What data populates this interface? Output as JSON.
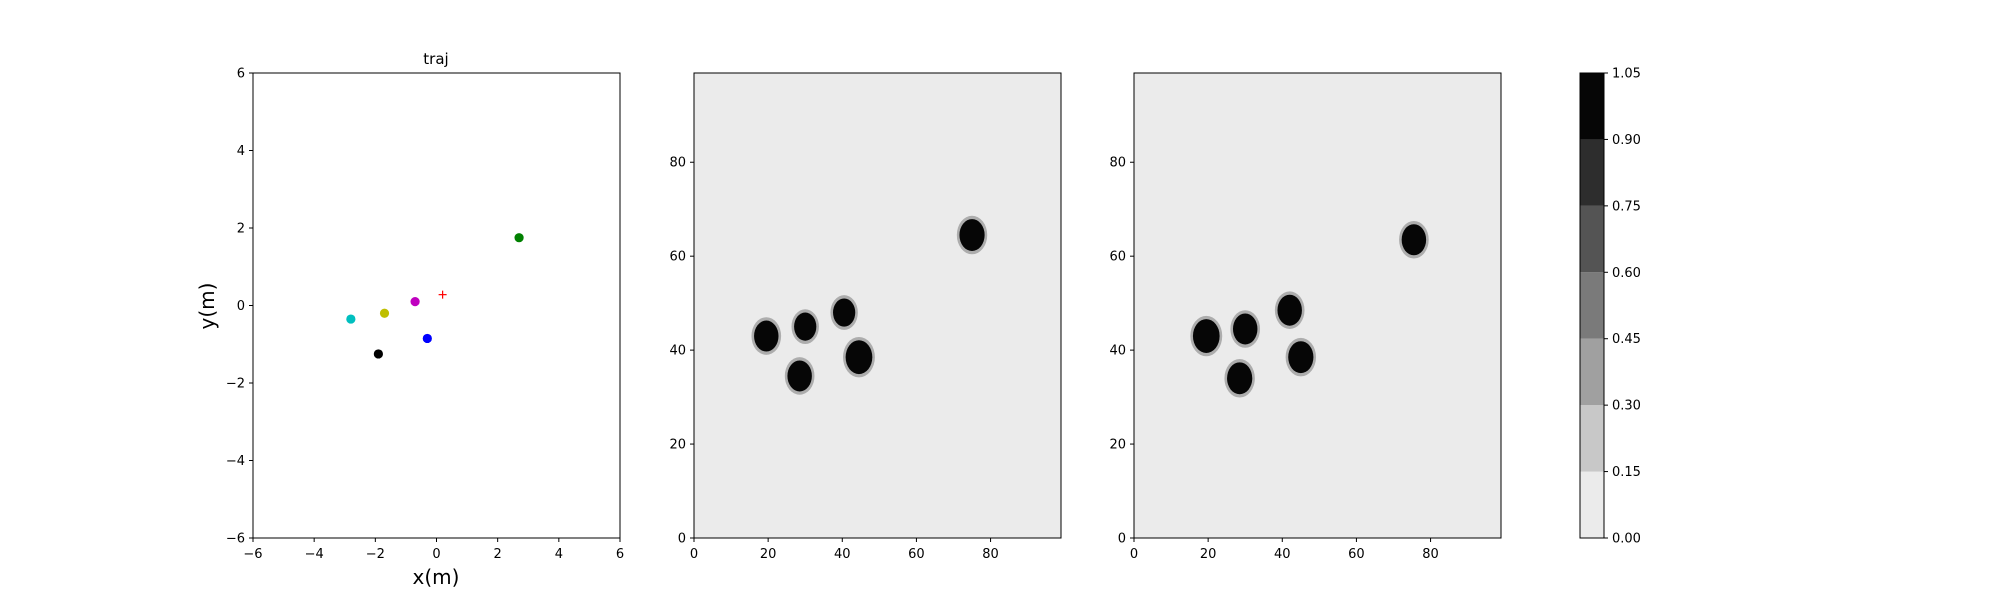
{
  "chart_data": [
    {
      "type": "scatter",
      "title": "traj",
      "xlabel": "x(m)",
      "ylabel": "y(m)",
      "xlim": [
        -6,
        6
      ],
      "ylim": [
        -6,
        6
      ],
      "xticks": [
        "−6",
        "−4",
        "−2",
        "0",
        "2",
        "4",
        "6"
      ],
      "yticks": [
        "−6",
        "−4",
        "−2",
        "0",
        "2",
        "4",
        "6"
      ],
      "grid": false,
      "points": [
        {
          "x": 2.7,
          "y": 1.75,
          "color": "#008000"
        },
        {
          "x": -2.8,
          "y": -0.35,
          "color": "#00bfbf"
        },
        {
          "x": -1.7,
          "y": -0.2,
          "color": "#bfbf00"
        },
        {
          "x": -0.7,
          "y": 0.1,
          "color": "#bf00bf"
        },
        {
          "x": -0.3,
          "y": -0.85,
          "color": "#0000ff"
        },
        {
          "x": -1.9,
          "y": -1.25,
          "color": "#000000"
        }
      ],
      "marker": {
        "x": 0.2,
        "y": 0.28,
        "symbol": "+",
        "color": "#ff0000"
      }
    },
    {
      "type": "heatmap",
      "xlim": [
        0,
        99
      ],
      "ylim": [
        0,
        99
      ],
      "xticks": [
        "0",
        "20",
        "40",
        "60",
        "80"
      ],
      "yticks": [
        "0",
        "20",
        "40",
        "60",
        "80"
      ],
      "background_value": 0.07,
      "blobs": [
        {
          "x": 19.5,
          "y": 43,
          "r": 3.3
        },
        {
          "x": 30,
          "y": 45,
          "r": 3.0
        },
        {
          "x": 40.5,
          "y": 48,
          "r": 3.0
        },
        {
          "x": 28.5,
          "y": 34.5,
          "r": 3.3
        },
        {
          "x": 44.5,
          "y": 38.5,
          "r": 3.6
        },
        {
          "x": 75,
          "y": 64.5,
          "r": 3.4
        }
      ]
    },
    {
      "type": "heatmap",
      "xlim": [
        0,
        99
      ],
      "ylim": [
        0,
        99
      ],
      "xticks": [
        "0",
        "20",
        "40",
        "60",
        "80"
      ],
      "yticks": [
        "0",
        "20",
        "40",
        "60",
        "80"
      ],
      "background_value": 0.07,
      "blobs": [
        {
          "x": 19.5,
          "y": 43,
          "r": 3.6
        },
        {
          "x": 30,
          "y": 44.5,
          "r": 3.3
        },
        {
          "x": 42,
          "y": 48.5,
          "r": 3.3
        },
        {
          "x": 28.5,
          "y": 34,
          "r": 3.4
        },
        {
          "x": 45,
          "y": 38.5,
          "r": 3.4
        },
        {
          "x": 75.5,
          "y": 63.5,
          "r": 3.3
        }
      ]
    }
  ],
  "colorbar": {
    "levels": [
      0.0,
      0.15,
      0.3,
      0.45,
      0.6,
      0.75,
      0.9,
      1.05
    ],
    "tick_labels": [
      "0.00",
      "0.15",
      "0.30",
      "0.45",
      "0.60",
      "0.75",
      "0.90",
      "1.05"
    ],
    "colors": [
      "#ebebeb",
      "#c8c8c8",
      "#a0a0a0",
      "#7a7a7a",
      "#545454",
      "#2d2d2d",
      "#060606"
    ]
  }
}
